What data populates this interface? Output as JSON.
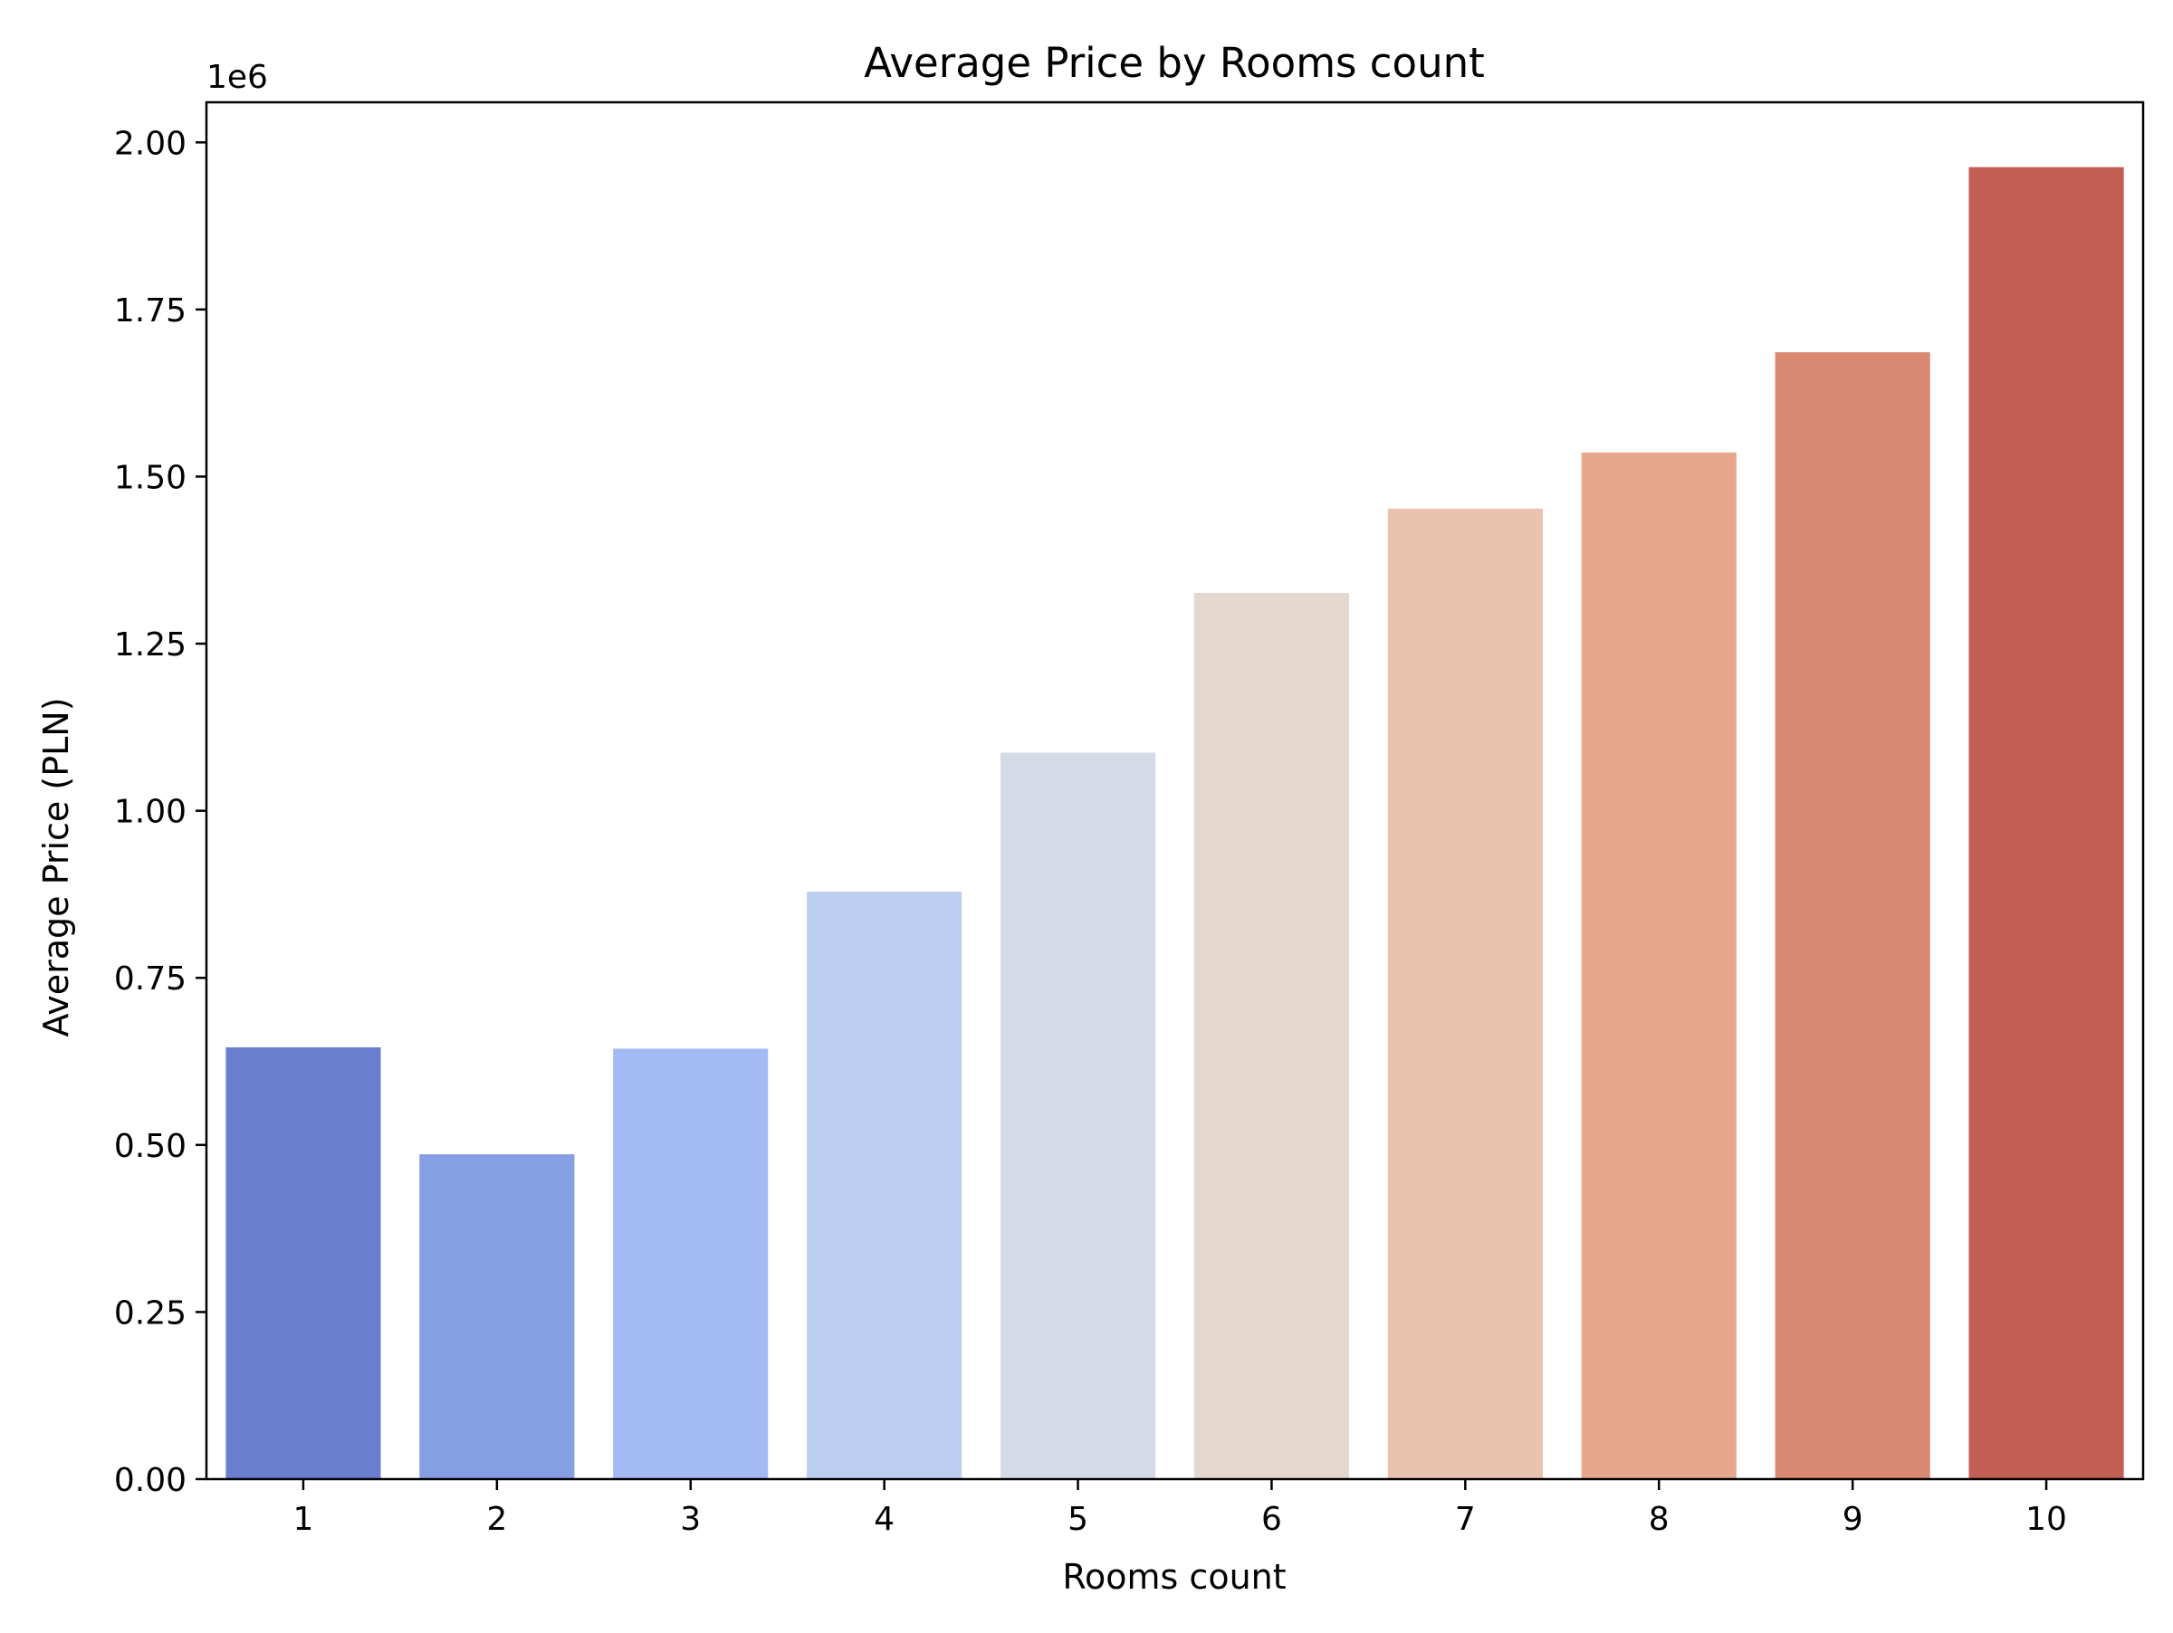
{
  "chart_data": {
    "type": "bar",
    "title": "Average Price by Rooms count",
    "xlabel": "Rooms count",
    "ylabel": "Average Price (PLN)",
    "y_offset_label": "1e6",
    "categories": [
      "1",
      "2",
      "3",
      "4",
      "5",
      "6",
      "7",
      "8",
      "9",
      "10"
    ],
    "values": [
      646000,
      486000,
      644000,
      879000,
      1087000,
      1326000,
      1452000,
      1536000,
      1686000,
      1963000
    ],
    "colors": [
      "#6a7ecf",
      "#869fe3",
      "#a3baf3",
      "#bdcff0",
      "#d5dbe6",
      "#e4d7ce",
      "#eac3b0",
      "#e6a78d",
      "#d98871",
      "#c25e54"
    ],
    "ylim": [
      0,
      2060000
    ],
    "yticks": [
      {
        "value": 0,
        "label": "0.00"
      },
      {
        "value": 250000,
        "label": "0.25"
      },
      {
        "value": 500000,
        "label": "0.50"
      },
      {
        "value": 750000,
        "label": "0.75"
      },
      {
        "value": 1000000,
        "label": "1.00"
      },
      {
        "value": 1250000,
        "label": "1.25"
      },
      {
        "value": 1500000,
        "label": "1.50"
      },
      {
        "value": 1750000,
        "label": "1.75"
      },
      {
        "value": 2000000,
        "label": "2.00"
      }
    ],
    "grid": false,
    "legend": "none"
  }
}
